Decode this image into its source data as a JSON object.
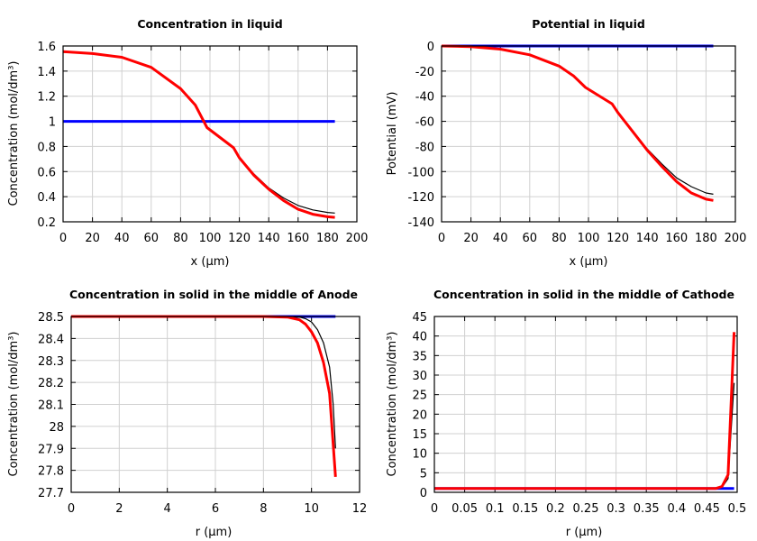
{
  "chart_data": [
    {
      "type": "line",
      "title": "Concentration in liquid",
      "xlabel": "x (µm)",
      "ylabel": "Concentration (mol/dm³)",
      "xlim": [
        0,
        200
      ],
      "ylim": [
        0.2,
        1.6
      ],
      "xticks": [
        "0",
        "20",
        "40",
        "60",
        "80",
        "100",
        "120",
        "140",
        "160",
        "180",
        "200"
      ],
      "yticks": [
        "0.2",
        "0.4",
        "0.6",
        "0.8",
        "1",
        "1.2",
        "1.4",
        "1.6"
      ],
      "grid": true,
      "series": [
        {
          "color": "#0000ff",
          "width": 3,
          "x": [
            0,
            185
          ],
          "y": [
            1.0,
            1.0
          ]
        },
        {
          "color": "#000000",
          "width": 1.2,
          "x": [
            0,
            20,
            40,
            60,
            80,
            90,
            98,
            116,
            120,
            130,
            140,
            150,
            160,
            170,
            180,
            185
          ],
          "y": [
            1.55,
            1.54,
            1.51,
            1.43,
            1.26,
            1.13,
            0.95,
            0.79,
            0.71,
            0.58,
            0.47,
            0.39,
            0.33,
            0.295,
            0.275,
            0.27
          ]
        },
        {
          "color": "#ff0000",
          "width": 3,
          "x": [
            0,
            20,
            40,
            60,
            80,
            90,
            98,
            116,
            120,
            130,
            140,
            150,
            160,
            170,
            180,
            185
          ],
          "y": [
            1.555,
            1.54,
            1.51,
            1.43,
            1.26,
            1.13,
            0.95,
            0.79,
            0.71,
            0.57,
            0.46,
            0.37,
            0.3,
            0.26,
            0.24,
            0.235
          ]
        }
      ]
    },
    {
      "type": "line",
      "title": "Potential in liquid",
      "xlabel": "x (µm)",
      "ylabel": "Potential (mV)",
      "xlim": [
        0,
        200
      ],
      "ylim": [
        -140,
        0
      ],
      "xticks": [
        "0",
        "20",
        "40",
        "60",
        "80",
        "100",
        "120",
        "140",
        "160",
        "180",
        "200"
      ],
      "yticks": [
        "-140",
        "-120",
        "-100",
        "-80",
        "-60",
        "-40",
        "-20",
        "0"
      ],
      "grid": true,
      "series": [
        {
          "color": "#0000ff",
          "width": 3,
          "x": [
            0,
            185
          ],
          "y": [
            0,
            0
          ]
        },
        {
          "color": "#000000",
          "width": 1.2,
          "x": [
            0,
            20,
            40,
            60,
            80,
            90,
            98,
            116,
            120,
            130,
            140,
            150,
            160,
            170,
            180,
            185
          ],
          "y": [
            0,
            -0.5,
            -2.5,
            -7,
            -16,
            -24,
            -33,
            -46,
            -53,
            -68,
            -82,
            -94,
            -105,
            -112,
            -117,
            -118
          ]
        },
        {
          "color": "#ff0000",
          "width": 3,
          "x": [
            0,
            20,
            40,
            60,
            80,
            90,
            98,
            116,
            120,
            130,
            140,
            150,
            160,
            170,
            180,
            185
          ],
          "y": [
            0,
            -0.5,
            -2.5,
            -7,
            -16,
            -24,
            -33,
            -46,
            -53,
            -68,
            -83,
            -96,
            -108,
            -117,
            -122,
            -123
          ]
        }
      ]
    },
    {
      "type": "line",
      "title": "Concentration in solid in the middle of Anode",
      "xlabel": "r (µm)",
      "ylabel": "Concentration (mol/dm³)",
      "xlim": [
        0,
        12
      ],
      "ylim": [
        27.7,
        28.5
      ],
      "xticks": [
        "0",
        "2",
        "4",
        "6",
        "8",
        "10",
        "12"
      ],
      "yticks": [
        "27.7",
        "27.8",
        "27.9",
        "28",
        "28.1",
        "28.2",
        "28.3",
        "28.4",
        "28.5"
      ],
      "grid": true,
      "series": [
        {
          "color": "#0000ff",
          "width": 3,
          "x": [
            0,
            11
          ],
          "y": [
            28.5,
            28.5
          ]
        },
        {
          "color": "#000000",
          "width": 1.2,
          "x": [
            0,
            8,
            9,
            9.5,
            9.75,
            10,
            10.25,
            10.5,
            10.75,
            10.9,
            11
          ],
          "y": [
            28.5,
            28.5,
            28.5,
            28.497,
            28.49,
            28.475,
            28.44,
            28.38,
            28.27,
            28.1,
            27.9
          ]
        },
        {
          "color": "#ff0000",
          "width": 3,
          "x": [
            0,
            8,
            9,
            9.5,
            9.75,
            10,
            10.25,
            10.5,
            10.75,
            11
          ],
          "y": [
            28.5,
            28.5,
            28.497,
            28.485,
            28.465,
            28.43,
            28.38,
            28.29,
            28.15,
            27.77
          ]
        }
      ]
    },
    {
      "type": "line",
      "title": "Concentration in solid in the middle of Cathode",
      "xlabel": "r (µm)",
      "ylabel": "Concentration (mol/dm³)",
      "xlim": [
        0,
        0.5
      ],
      "ylim": [
        0,
        45
      ],
      "xticks": [
        "0",
        "0.05",
        "0.1",
        "0.15",
        "0.2",
        "0.25",
        "0.3",
        "0.35",
        "0.4",
        "0.45",
        "0.5"
      ],
      "yticks": [
        "0",
        "5",
        "10",
        "15",
        "20",
        "25",
        "30",
        "35",
        "40",
        "45"
      ],
      "grid": true,
      "series": [
        {
          "color": "#0000ff",
          "width": 3,
          "x": [
            0,
            0.495
          ],
          "y": [
            1,
            1
          ]
        },
        {
          "color": "#000000",
          "width": 1.2,
          "x": [
            0,
            0.465,
            0.475,
            0.485,
            0.495
          ],
          "y": [
            1,
            1,
            1.3,
            3.5,
            28
          ]
        },
        {
          "color": "#ff0000",
          "width": 3,
          "x": [
            0,
            0.465,
            0.475,
            0.485,
            0.495
          ],
          "y": [
            1,
            1,
            1.5,
            4.5,
            41
          ]
        }
      ]
    }
  ]
}
